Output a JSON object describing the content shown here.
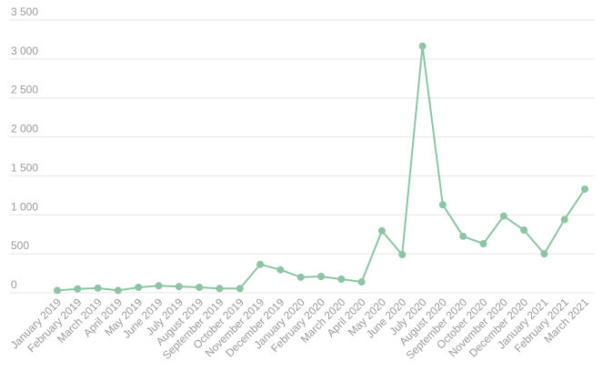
{
  "colors": {
    "series": "#8cc4a4",
    "grid": "#e6e6e6",
    "tick_text": "#999999"
  },
  "chart_data": {
    "type": "line",
    "title": "",
    "xlabel": "",
    "ylabel": "",
    "ylim": [
      0,
      3500
    ],
    "yticks": [
      {
        "value": 0,
        "label": "0"
      },
      {
        "value": 500,
        "label": "500"
      },
      {
        "value": 1000,
        "label": "1 000"
      },
      {
        "value": 1500,
        "label": "1 500"
      },
      {
        "value": 2000,
        "label": "2 000"
      },
      {
        "value": 2500,
        "label": "2 500"
      },
      {
        "value": 3000,
        "label": "3 000"
      },
      {
        "value": 3500,
        "label": "3 500"
      }
    ],
    "grid": true,
    "categories": [
      "January 2019",
      "February 2019",
      "March 2019",
      "April 2019",
      "May 2019",
      "June 2019",
      "July 2019",
      "August 2019",
      "September 2019",
      "October 2019",
      "November 2019",
      "December 2019",
      "January 2020",
      "February 2020",
      "March 2020",
      "April 2020",
      "May 2020",
      "June 2020",
      "July 2020",
      "August 2020",
      "September 2020",
      "October 2020",
      "November 2020",
      "December 2020",
      "January 2021",
      "February 2021",
      "March 2021"
    ],
    "series": [
      {
        "values": [
          30,
          50,
          60,
          30,
          70,
          90,
          80,
          70,
          55,
          55,
          365,
          295,
          200,
          210,
          175,
          140,
          795,
          490,
          3165,
          1130,
          725,
          630,
          985,
          805,
          500,
          940,
          1330
        ]
      }
    ]
  }
}
